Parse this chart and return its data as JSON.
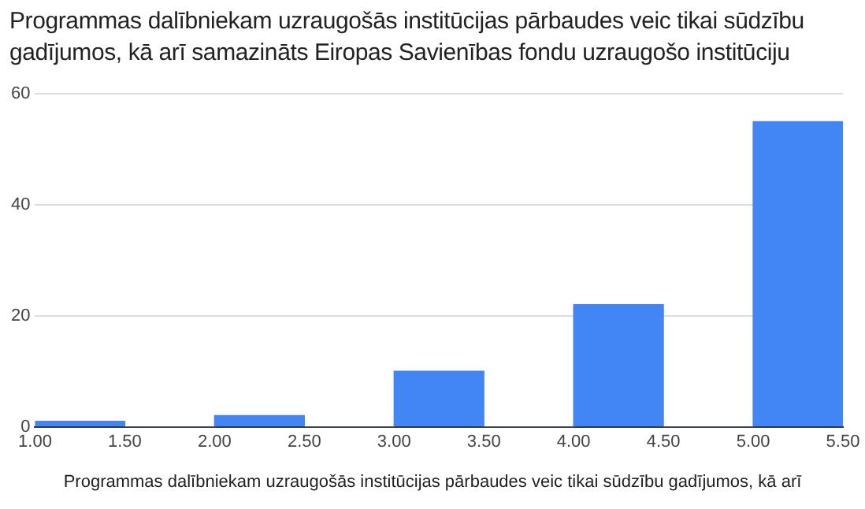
{
  "chart_data": {
    "type": "histogram",
    "title": "Programmas dalībniekam uzraugošās institūcijas pārbaudes veic tikai sūdzību gadījumos, kā arī samazināts Eiropas Savienības fondu uzraugošo institūciju",
    "xlabel": "Programmas dalībniekam uzraugošās institūcijas pārbaudes veic tikai sūdzību gadījumos, kā arī",
    "bins": [
      1,
      1.5,
      2,
      2.5,
      3,
      3.5,
      4,
      4.5,
      5,
      5.5
    ],
    "values": [
      1,
      0,
      2,
      0,
      10,
      0,
      22,
      0,
      55
    ],
    "color": "#4285f4",
    "xlim": [
      1,
      5.5
    ],
    "xticks": [
      {
        "value": 1,
        "label": "1.00"
      },
      {
        "value": 1.5,
        "label": "1.50"
      },
      {
        "value": 2,
        "label": "2.00"
      },
      {
        "value": 2.5,
        "label": "2.50"
      },
      {
        "value": 3,
        "label": "3.00"
      },
      {
        "value": 3.5,
        "label": "3.50"
      },
      {
        "value": 4,
        "label": "4.00"
      },
      {
        "value": 4.5,
        "label": "4.50"
      },
      {
        "value": 5,
        "label": "5.00"
      },
      {
        "value": 5.5,
        "label": "5.50"
      }
    ],
    "ylim": [
      0,
      60
    ],
    "yticks": [
      0,
      20,
      40,
      60
    ],
    "grid": "y",
    "legend": false
  }
}
